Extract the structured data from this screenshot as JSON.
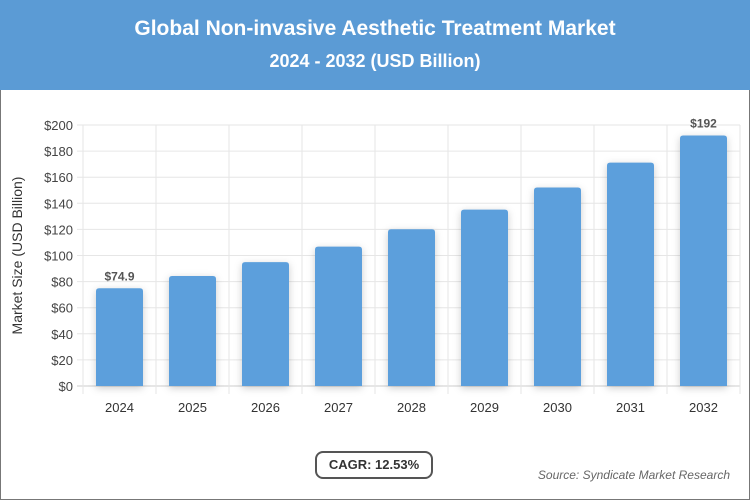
{
  "header": {
    "title": "Global Non-invasive Aesthetic Treatment Market",
    "subtitle": "2024 - 2032 (USD Billion)"
  },
  "chart_data": {
    "type": "bar",
    "title": "Global Non-invasive Aesthetic Treatment Market",
    "subtitle": "2024 - 2032 (USD Billion)",
    "categories": [
      "2024",
      "2025",
      "2026",
      "2027",
      "2028",
      "2029",
      "2030",
      "2031",
      "2032"
    ],
    "values": [
      74.9,
      84.3,
      94.9,
      106.8,
      120.1,
      135.2,
      152.1,
      171.2,
      192
    ],
    "data_labels": {
      "0": "$74.9",
      "8": "$192"
    },
    "ylabel": "Market Size (USD Billion)",
    "xlabel": "",
    "ylim": [
      0,
      200
    ],
    "yticks": [
      "$0",
      "$20",
      "$40",
      "$60",
      "$80",
      "$100",
      "$120",
      "$140",
      "$160",
      "$180",
      "$200"
    ],
    "grid": true,
    "bar_color": "#5b9fdc"
  },
  "footer": {
    "cagr": "CAGR: 12.53%",
    "source": "Source: Syndicate Market Research"
  }
}
